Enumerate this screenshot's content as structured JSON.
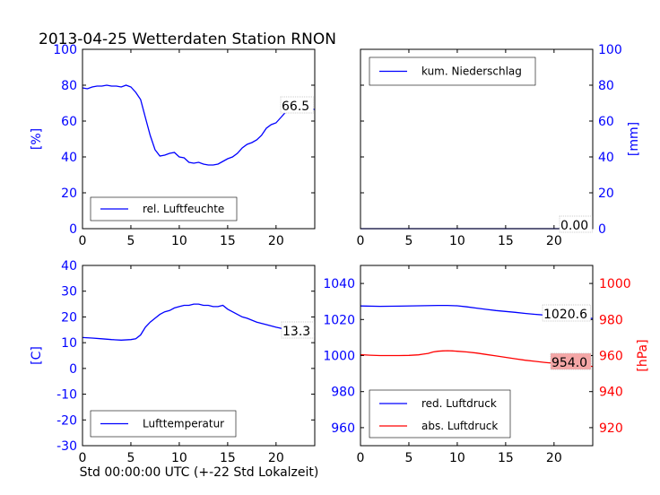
{
  "title": "2013-04-25 Wetterdaten Station RNON",
  "xlabel": "Std 00:00:00 UTC (+-22 Std Lokalzeit)",
  "colors": {
    "humidity": "#0000ff",
    "precip": "#0000ff",
    "temp": "#0000ff",
    "red_pressure": "#0000ff",
    "abs_pressure": "#ff0000",
    "abs_label_bg": "#f4a6a6"
  },
  "chart_data": [
    {
      "type": "line",
      "panel": "top-left",
      "ylabel": "[%]",
      "xlim": [
        0,
        24
      ],
      "ylim": [
        0,
        100
      ],
      "xticks": [
        0,
        5,
        10,
        15,
        20
      ],
      "yticks": [
        0,
        20,
        40,
        60,
        80,
        100
      ],
      "legend": "lower-left",
      "last_value_label": "66.5",
      "series": [
        {
          "name": "rel. Luftfeuchte",
          "x": [
            0,
            0.5,
            1,
            1.5,
            2,
            2.5,
            3,
            3.5,
            4,
            4.5,
            5,
            5.5,
            6,
            6.5,
            7,
            7.5,
            8,
            8.5,
            9,
            9.5,
            10,
            10.5,
            11,
            11.5,
            12,
            12.5,
            13,
            13.5,
            14,
            14.5,
            15,
            15.5,
            16,
            16.5,
            17,
            17.5,
            18,
            18.5,
            19,
            19.5,
            20,
            20.5,
            21,
            21.5,
            22,
            22.5,
            23,
            23.5,
            24
          ],
          "y": [
            78.5,
            78,
            79,
            79.5,
            79.5,
            80,
            79.5,
            79.5,
            79,
            80,
            79,
            76,
            72,
            62,
            52,
            44,
            40.5,
            41,
            42,
            42.5,
            40,
            39.5,
            37,
            36.5,
            37,
            36,
            35.5,
            35.5,
            36,
            37.5,
            39,
            40,
            42,
            45,
            47,
            48,
            49.5,
            52,
            56,
            58,
            59,
            62,
            65,
            66,
            67,
            67,
            66.5,
            66.5,
            66.5
          ]
        }
      ]
    },
    {
      "type": "line",
      "panel": "top-right",
      "ylabel": "[mm]",
      "xlim": [
        0,
        24
      ],
      "ylim": [
        0,
        100
      ],
      "xticks": [
        0,
        5,
        10,
        15,
        20
      ],
      "yticks": [
        0,
        20,
        40,
        60,
        80,
        100
      ],
      "legend": "top-left",
      "last_value_label": "0.00",
      "series": [
        {
          "name": "kum. Niederschlag",
          "x": [
            0,
            24
          ],
          "y": [
            0,
            0
          ]
        }
      ]
    },
    {
      "type": "line",
      "panel": "bottom-left",
      "ylabel": "[C]",
      "xlim": [
        0,
        24
      ],
      "ylim": [
        -30,
        40
      ],
      "xticks": [
        0,
        5,
        10,
        15,
        20
      ],
      "yticks": [
        -30,
        -20,
        -10,
        0,
        10,
        20,
        30,
        40
      ],
      "legend": "lower-left",
      "last_value_label": "13.3",
      "series": [
        {
          "name": "Lufttemperatur",
          "x": [
            0,
            1,
            2,
            3,
            4,
            5,
            5.5,
            6,
            6.5,
            7,
            7.5,
            8,
            8.5,
            9,
            9.5,
            10,
            10.5,
            11,
            11.5,
            12,
            12.5,
            13,
            13.5,
            14,
            14.5,
            15,
            15.5,
            16,
            16.5,
            17,
            18,
            19,
            20,
            21,
            22,
            23,
            24
          ],
          "y": [
            12,
            11.8,
            11.5,
            11.2,
            11,
            11.2,
            11.5,
            13,
            16,
            18,
            19.5,
            21,
            22,
            22.5,
            23.5,
            24,
            24.5,
            24.5,
            25,
            25,
            24.5,
            24.5,
            24,
            24,
            24.5,
            23,
            22,
            21,
            20,
            19.5,
            18,
            17,
            16,
            15.2,
            14.5,
            13.8,
            13.3
          ]
        }
      ]
    },
    {
      "type": "line",
      "panel": "bottom-right",
      "ylabel": "",
      "y2label": "[hPa]",
      "xlim": [
        0,
        24
      ],
      "ylim": [
        950,
        1050
      ],
      "y2lim": [
        910,
        1010
      ],
      "xticks": [
        0,
        5,
        10,
        15,
        20
      ],
      "yticks": [
        960,
        980,
        1000,
        1020,
        1040
      ],
      "y2ticks": [
        920,
        940,
        960,
        980,
        1000
      ],
      "legend": "lower-left",
      "series": [
        {
          "name": "red. Luftdruck",
          "last_value_label": "1020.6",
          "x": [
            0,
            2,
            4,
            6,
            8,
            9,
            10,
            11,
            12,
            13,
            14,
            15,
            16,
            17,
            18,
            19,
            20,
            21,
            22,
            23,
            24
          ],
          "y": [
            1027.5,
            1027.3,
            1027.4,
            1027.6,
            1027.8,
            1027.8,
            1027.6,
            1027,
            1026.3,
            1025.6,
            1025,
            1024.5,
            1024,
            1023.4,
            1022.9,
            1022.5,
            1022.2,
            1022,
            1021.6,
            1021,
            1020.6
          ]
        },
        {
          "name": "abs. Luftdruck",
          "last_value_label": "954.0",
          "axis": "right",
          "x": [
            0,
            1,
            2,
            3,
            4,
            5,
            6,
            6.5,
            7,
            7.5,
            8,
            8.5,
            9,
            9.5,
            10,
            11,
            12,
            13,
            14,
            15,
            16,
            17,
            18,
            19,
            20,
            21,
            22,
            23,
            24
          ],
          "y": [
            960.5,
            960.2,
            960,
            960,
            960,
            960.1,
            960.4,
            960.8,
            961.2,
            962,
            962.4,
            962.6,
            962.7,
            962.6,
            962.4,
            962,
            961.4,
            960.6,
            959.8,
            959,
            958.2,
            957.4,
            956.8,
            956.2,
            955.7,
            955.2,
            954.8,
            954.3,
            954
          ]
        }
      ]
    }
  ]
}
